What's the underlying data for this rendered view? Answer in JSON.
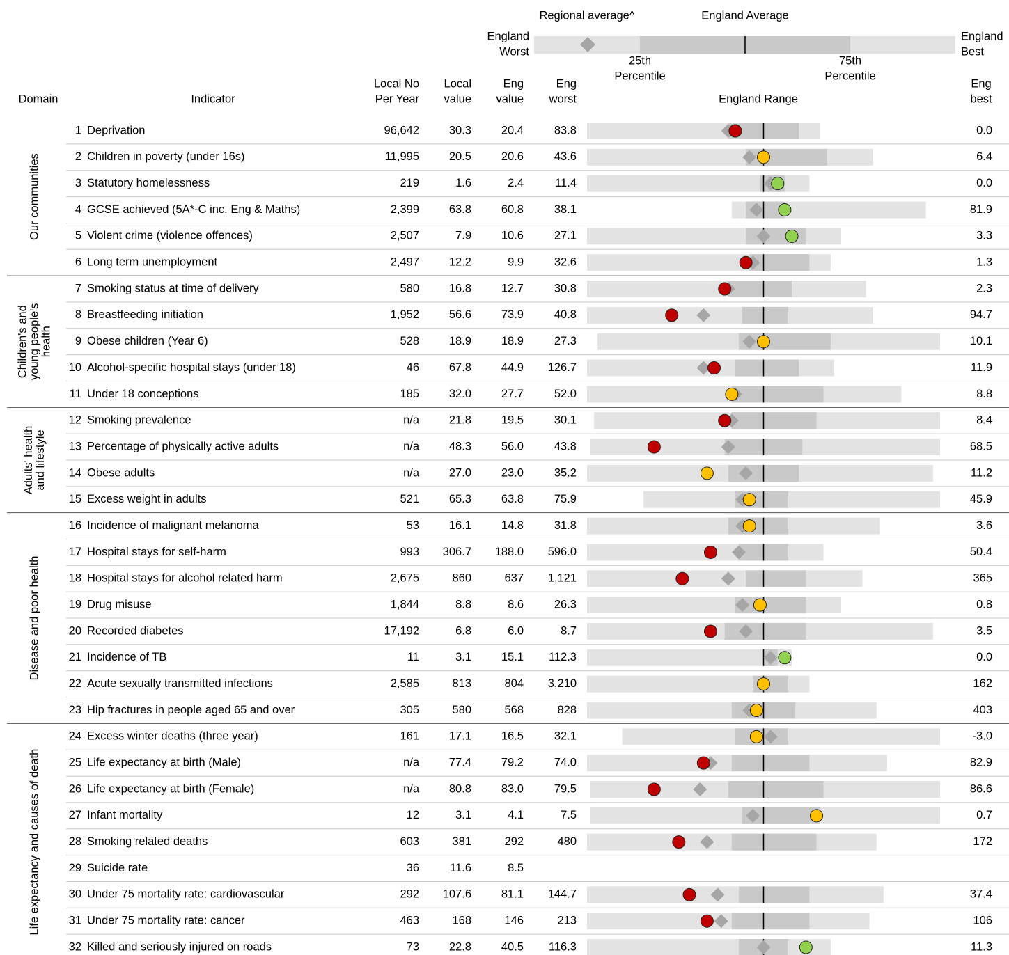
{
  "legend": {
    "regional_average": "Regional average^",
    "england_average": "England Average",
    "england_worst": [
      "England",
      "Worst"
    ],
    "england_best": [
      "England",
      "Best"
    ],
    "p25": [
      "25th",
      "Percentile"
    ],
    "p75": [
      "75th",
      "Percentile"
    ]
  },
  "headers": {
    "domain": "Domain",
    "indicator": "Indicator",
    "local_no": [
      "Local No",
      "Per Year"
    ],
    "local_value": [
      "Local",
      "value"
    ],
    "eng_value": [
      "Eng",
      "value"
    ],
    "eng_worst": [
      "Eng",
      "worst"
    ],
    "range": "England Range",
    "eng_best": [
      "Eng",
      "best"
    ]
  },
  "spine": {
    "xlim": [
      0,
      100
    ],
    "average": 50,
    "range_color": "#e3e3e3",
    "iqr_color": "#c9c9c9",
    "regional_color": "#a6a6a6"
  },
  "domains": [
    {
      "lines": [
        "Our communities"
      ],
      "rows": [
        {
          "num": "1",
          "name": "Deprivation",
          "local_no": "96,642",
          "local": "30.3",
          "eng": "20.4",
          "worst": "83.8",
          "best": "0.0",
          "spine": {
            "worst": 0,
            "p25": 40,
            "p75": 60,
            "best": 66,
            "regional": 40,
            "local": 42,
            "local_color": "#c00000"
          }
        },
        {
          "num": "2",
          "name": "Children in poverty (under 16s)",
          "local_no": "11,995",
          "local": "20.5",
          "eng": "20.6",
          "worst": "43.6",
          "best": "6.4",
          "spine": {
            "worst": 0,
            "p25": 45,
            "p75": 68,
            "best": 81,
            "regional": 46,
            "local": 50,
            "local_color": "#ffc000"
          }
        },
        {
          "num": "3",
          "name": "Statutory homelessness",
          "local_no": "219",
          "local": "1.6",
          "eng": "2.4",
          "worst": "11.4",
          "best": "0.0",
          "spine": {
            "worst": 0,
            "p25": 49,
            "p75": 56,
            "best": 63,
            "regional": 52,
            "local": 54,
            "local_color": "#92d050"
          }
        },
        {
          "num": "4",
          "name": "GCSE achieved (5A*-C inc. Eng & Maths)",
          "local_no": "2,399",
          "local": "63.8",
          "eng": "60.8",
          "worst": "38.1",
          "best": "81.9",
          "spine": {
            "worst": 41,
            "p25": 45,
            "p75": 56,
            "best": 96,
            "regional": 48,
            "local": 56,
            "local_color": "#92d050"
          }
        },
        {
          "num": "5",
          "name": "Violent crime (violence offences)",
          "local_no": "2,507",
          "local": "7.9",
          "eng": "10.6",
          "worst": "27.1",
          "best": "3.3",
          "spine": {
            "worst": 0,
            "p25": 45,
            "p75": 62,
            "best": 72,
            "regional": 50,
            "local": 58,
            "local_color": "#92d050"
          }
        },
        {
          "num": "6",
          "name": "Long term unemployment",
          "local_no": "2,497",
          "local": "12.2",
          "eng": "9.9",
          "worst": "32.6",
          "best": "1.3",
          "spine": {
            "worst": 0,
            "p25": 46,
            "p75": 63,
            "best": 69,
            "regional": 47,
            "local": 45,
            "local_color": "#c00000"
          }
        }
      ]
    },
    {
      "lines": [
        "Children's and",
        "young people's",
        "health"
      ],
      "rows": [
        {
          "num": "7",
          "name": "Smoking status at time of delivery",
          "local_no": "580",
          "local": "16.8",
          "eng": "12.7",
          "worst": "30.8",
          "best": "2.3",
          "spine": {
            "worst": 0,
            "p25": 40,
            "p75": 58,
            "best": 79,
            "regional": 40,
            "local": 39,
            "local_color": "#c00000"
          }
        },
        {
          "num": "8",
          "name": "Breastfeeding initiation",
          "local_no": "1,952",
          "local": "56.6",
          "eng": "73.9",
          "worst": "40.8",
          "best": "94.7",
          "spine": {
            "worst": 0,
            "p25": 44,
            "p75": 57,
            "best": 81,
            "regional": 33,
            "local": 24,
            "local_color": "#c00000"
          }
        },
        {
          "num": "9",
          "name": "Obese children (Year 6)",
          "local_no": "528",
          "local": "18.9",
          "eng": "18.9",
          "worst": "27.3",
          "best": "10.1",
          "spine": {
            "worst": 3,
            "p25": 43,
            "p75": 69,
            "best": 100,
            "regional": 46,
            "local": 50,
            "local_color": "#ffc000"
          }
        },
        {
          "num": "10",
          "name": "Alcohol-specific hospital stays (under 18)",
          "local_no": "46",
          "local": "67.8",
          "eng": "44.9",
          "worst": "126.7",
          "best": "11.9",
          "spine": {
            "worst": 0,
            "p25": 42,
            "p75": 60,
            "best": 70,
            "regional": 33,
            "local": 36,
            "local_color": "#c00000"
          }
        },
        {
          "num": "11",
          "name": "Under 18 conceptions",
          "local_no": "185",
          "local": "32.0",
          "eng": "27.7",
          "worst": "52.0",
          "best": "8.8",
          "spine": {
            "worst": 0,
            "p25": 41,
            "p75": 67,
            "best": 89,
            "regional": 42,
            "local": 41,
            "local_color": "#ffc000"
          }
        }
      ]
    },
    {
      "lines": [
        "Adults' health",
        "and lifestyle"
      ],
      "rows": [
        {
          "num": "12",
          "name": "Smoking prevalence",
          "local_no": "n/a",
          "local": "21.8",
          "eng": "19.5",
          "worst": "30.1",
          "best": "8.4",
          "spine": {
            "worst": 2,
            "p25": 41,
            "p75": 65,
            "best": 100,
            "regional": 41,
            "local": 39,
            "local_color": "#c00000"
          }
        },
        {
          "num": "13",
          "name": "Percentage of physically active adults",
          "local_no": "n/a",
          "local": "48.3",
          "eng": "56.0",
          "worst": "43.8",
          "best": "68.5",
          "spine": {
            "worst": 1,
            "p25": 39,
            "p75": 61,
            "best": 100,
            "regional": 40,
            "local": 19,
            "local_color": "#c00000"
          }
        },
        {
          "num": "14",
          "name": "Obese adults",
          "local_no": "n/a",
          "local": "27.0",
          "eng": "23.0",
          "worst": "35.2",
          "best": "11.2",
          "spine": {
            "worst": 0,
            "p25": 40,
            "p75": 60,
            "best": 98,
            "regional": 45,
            "local": 34,
            "local_color": "#ffc000"
          }
        },
        {
          "num": "15",
          "name": "Excess weight in adults",
          "local_no": "521",
          "local": "65.3",
          "eng": "63.8",
          "worst": "75.9",
          "best": "45.9",
          "spine": {
            "worst": 16,
            "p25": 42,
            "p75": 57,
            "best": 100,
            "regional": 44,
            "local": 46,
            "local_color": "#ffc000"
          }
        }
      ]
    },
    {
      "lines": [
        "Disease and poor health"
      ],
      "rows": [
        {
          "num": "16",
          "name": "Incidence of malignant melanoma",
          "local_no": "53",
          "local": "16.1",
          "eng": "14.8",
          "worst": "31.8",
          "best": "3.6",
          "spine": {
            "worst": 0,
            "p25": 40,
            "p75": 57,
            "best": 83,
            "regional": 44,
            "local": 46,
            "local_color": "#ffc000"
          }
        },
        {
          "num": "17",
          "name": "Hospital stays for self-harm",
          "local_no": "993",
          "local": "306.7",
          "eng": "188.0",
          "worst": "596.0",
          "best": "50.4",
          "spine": {
            "worst": 0,
            "p25": 43,
            "p75": 57,
            "best": 67,
            "regional": 43,
            "local": 35,
            "local_color": "#c00000"
          }
        },
        {
          "num": "18",
          "name": "Hospital stays for alcohol related harm",
          "local_no": "2,675",
          "local": "860",
          "eng": "637",
          "worst": "1,121",
          "best": "365",
          "spine": {
            "worst": 0,
            "p25": 45,
            "p75": 62,
            "best": 78,
            "regional": 40,
            "local": 27,
            "local_color": "#c00000"
          }
        },
        {
          "num": "19",
          "name": "Drug misuse",
          "local_no": "1,844",
          "local": "8.8",
          "eng": "8.6",
          "worst": "26.3",
          "best": "0.8",
          "spine": {
            "worst": 0,
            "p25": 42,
            "p75": 62,
            "best": 72,
            "regional": 44,
            "local": 49,
            "local_color": "#ffc000"
          }
        },
        {
          "num": "20",
          "name": "Recorded diabetes",
          "local_no": "17,192",
          "local": "6.8",
          "eng": "6.0",
          "worst": "8.7",
          "best": "3.5",
          "spine": {
            "worst": 0,
            "p25": 39,
            "p75": 62,
            "best": 98,
            "regional": 45,
            "local": 35,
            "local_color": "#c00000"
          }
        },
        {
          "num": "21",
          "name": "Incidence of TB",
          "local_no": "11",
          "local": "3.1",
          "eng": "15.1",
          "worst": "112.3",
          "best": "0.0",
          "spine": {
            "worst": 0,
            "p25": 50,
            "p75": 54,
            "best": 58,
            "regional": 52,
            "local": 56,
            "local_color": "#92d050"
          }
        },
        {
          "num": "22",
          "name": "Acute sexually transmitted infections",
          "local_no": "2,585",
          "local": "813",
          "eng": "804",
          "worst": "3,210",
          "best": "162",
          "spine": {
            "worst": 0,
            "p25": 47,
            "p75": 57,
            "best": 63,
            "regional": 50,
            "local": 50,
            "local_color": "#ffc000"
          }
        },
        {
          "num": "23",
          "name": "Hip fractures in people aged 65 and over",
          "local_no": "305",
          "local": "580",
          "eng": "568",
          "worst": "828",
          "best": "403",
          "spine": {
            "worst": 0,
            "p25": 41,
            "p75": 59,
            "best": 82,
            "regional": 46,
            "local": 48,
            "local_color": "#ffc000"
          }
        }
      ]
    },
    {
      "lines": [
        "Life expectancy and causes of death"
      ],
      "rows": [
        {
          "num": "24",
          "name": "Excess winter deaths (three year)",
          "local_no": "161",
          "local": "17.1",
          "eng": "16.5",
          "worst": "32.1",
          "best": "-3.0",
          "spine": {
            "worst": 10,
            "p25": 42,
            "p75": 57,
            "best": 100,
            "regional": 52,
            "local": 48,
            "local_color": "#ffc000"
          }
        },
        {
          "num": "25",
          "name": "Life expectancy at birth (Male)",
          "local_no": "n/a",
          "local": "77.4",
          "eng": "79.2",
          "worst": "74.0",
          "best": "82.9",
          "spine": {
            "worst": 0,
            "p25": 41,
            "p75": 63,
            "best": 85,
            "regional": 35,
            "local": 33,
            "local_color": "#c00000"
          }
        },
        {
          "num": "26",
          "name": "Life expectancy at birth (Female)",
          "local_no": "n/a",
          "local": "80.8",
          "eng": "83.0",
          "worst": "79.5",
          "best": "86.6",
          "spine": {
            "worst": 1,
            "p25": 40,
            "p75": 67,
            "best": 100,
            "regional": 32,
            "local": 19,
            "local_color": "#c00000"
          }
        },
        {
          "num": "27",
          "name": "Infant mortality",
          "local_no": "12",
          "local": "3.1",
          "eng": "4.1",
          "worst": "7.5",
          "best": "0.7",
          "spine": {
            "worst": 1,
            "p25": 44,
            "p75": 66,
            "best": 100,
            "regional": 47,
            "local": 65,
            "local_color": "#ffc000"
          }
        },
        {
          "num": "28",
          "name": "Smoking related deaths",
          "local_no": "603",
          "local": "381",
          "eng": "292",
          "worst": "480",
          "best": "172",
          "spine": {
            "worst": 0,
            "p25": 41,
            "p75": 65,
            "best": 82,
            "regional": 34,
            "local": 26,
            "local_color": "#c00000"
          }
        },
        {
          "num": "29",
          "name": "Suicide rate",
          "local_no": "36",
          "local": "11.6",
          "eng": "8.5"
        },
        {
          "num": "30",
          "name": "Under 75 mortality rate: cardiovascular",
          "local_no": "292",
          "local": "107.6",
          "eng": "81.1",
          "worst": "144.7",
          "best": "37.4",
          "spine": {
            "worst": 0,
            "p25": 43,
            "p75": 63,
            "best": 84,
            "regional": 37,
            "local": 29,
            "local_color": "#c00000"
          }
        },
        {
          "num": "31",
          "name": "Under 75 mortality rate: cancer",
          "local_no": "463",
          "local": "168",
          "eng": "146",
          "worst": "213",
          "best": "106",
          "spine": {
            "worst": 0,
            "p25": 41,
            "p75": 63,
            "best": 80,
            "regional": 38,
            "local": 34,
            "local_color": "#c00000"
          }
        },
        {
          "num": "32",
          "name": "Killed and seriously injured on roads",
          "local_no": "73",
          "local": "22.8",
          "eng": "40.5",
          "worst": "116.3",
          "best": "11.3",
          "spine": {
            "worst": 0,
            "p25": 43,
            "p75": 57,
            "best": 69,
            "regional": 50,
            "local": 62,
            "local_color": "#92d050"
          }
        }
      ]
    }
  ]
}
